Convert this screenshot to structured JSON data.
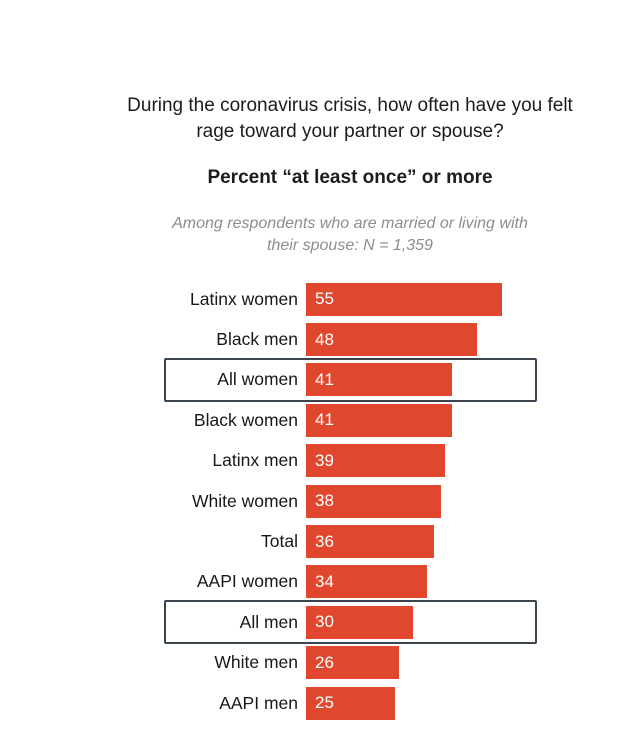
{
  "title": "During the coronavirus crisis, how often have you felt rage toward your partner or spouse?",
  "subtitle": "Percent “at least once” or more",
  "note": "Among respondents who are married or living with their spouse: N = 1,359",
  "colors": {
    "bar": "#e0472e",
    "bar_value_text": "#ffffff",
    "highlight_border": "#3b4550",
    "title_text": "#1c1c1e",
    "note_text": "#8d8d8d"
  },
  "chart_data": {
    "type": "bar",
    "orientation": "horizontal",
    "title": "During the coronavirus crisis, how often have you felt rage toward your partner or spouse?",
    "subtitle": "Percent “at least once” or more",
    "annotation": "Among respondents who are married or living with their spouse: N = 1,359",
    "categories": [
      "Latinx women",
      "Black men",
      "All women",
      "Black women",
      "Latinx men",
      "White women",
      "Total",
      "AAPI women",
      "All men",
      "White men",
      "AAPI men"
    ],
    "values": [
      55,
      48,
      41,
      41,
      39,
      38,
      36,
      34,
      30,
      26,
      25
    ],
    "highlighted_categories": [
      "All women",
      "All men"
    ],
    "value_labels": "inside-bar-left",
    "xlim": [
      0,
      65
    ],
    "grid": false,
    "legend": false
  }
}
